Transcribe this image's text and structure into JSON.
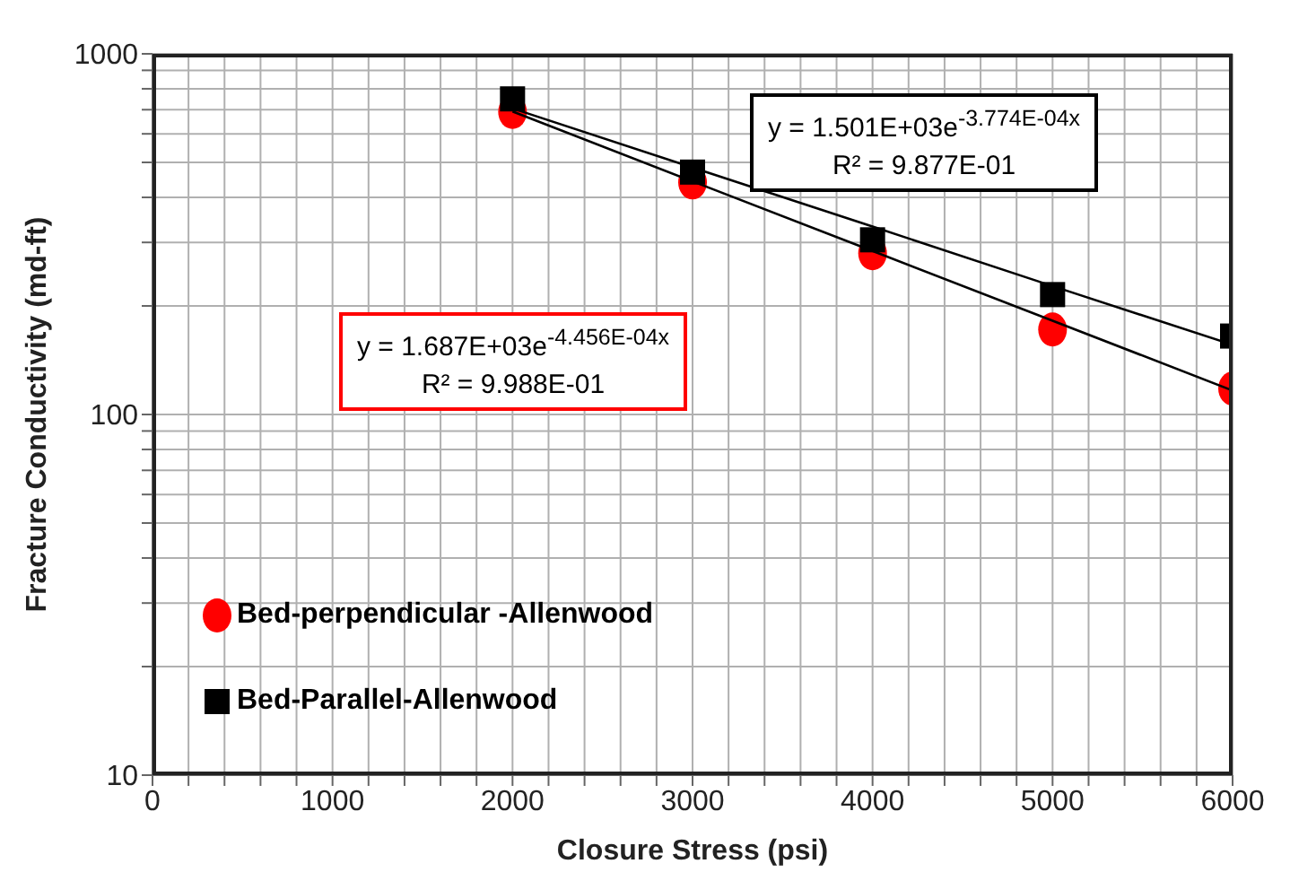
{
  "chart_data": {
    "type": "scatter",
    "xlabel": "Closure Stress (psi)",
    "ylabel": "Fracture Conductivity (md-ft)",
    "log": "y",
    "grid": true,
    "legend": "bottom left",
    "xlim": [
      0,
      6000
    ],
    "ylim": [
      10,
      1000
    ],
    "xticks": [
      0,
      {
        "value": 200,
        "label": null
      },
      {
        "value": 400,
        "label": null
      },
      {
        "value": 600,
        "label": null
      },
      {
        "value": 800,
        "label": null
      },
      1000,
      {
        "value": 1200,
        "label": null
      },
      {
        "value": 1400,
        "label": null
      },
      {
        "value": 1600,
        "label": null
      },
      {
        "value": 1800,
        "label": null
      },
      2000,
      {
        "value": 2200,
        "label": null
      },
      {
        "value": 2400,
        "label": null
      },
      {
        "value": 2600,
        "label": null
      },
      {
        "value": 2800,
        "label": null
      },
      3000,
      {
        "value": 3200,
        "label": null
      },
      {
        "value": 3400,
        "label": null
      },
      {
        "value": 3600,
        "label": null
      },
      {
        "value": 3800,
        "label": null
      },
      4000,
      {
        "value": 4200,
        "label": null
      },
      {
        "value": 4400,
        "label": null
      },
      {
        "value": 4600,
        "label": null
      },
      {
        "value": 4800,
        "label": null
      },
      5000,
      {
        "value": 5200,
        "label": null
      },
      {
        "value": 5400,
        "label": null
      },
      {
        "value": 5600,
        "label": null
      },
      {
        "value": 5800,
        "label": null
      },
      6000
    ],
    "yticks": [
      10,
      {
        "value": 20,
        "label": null
      },
      {
        "value": 30,
        "label": null
      },
      {
        "value": 40,
        "label": null
      },
      {
        "value": 50,
        "label": null
      },
      {
        "value": 60,
        "label": null
      },
      {
        "value": 70,
        "label": null
      },
      {
        "value": 80,
        "label": null
      },
      {
        "value": 90,
        "label": null
      },
      100,
      {
        "value": 200,
        "label": null
      },
      {
        "value": 300,
        "label": null
      },
      {
        "value": 400,
        "label": null
      },
      {
        "value": 500,
        "label": null
      },
      {
        "value": 600,
        "label": null
      },
      {
        "value": 700,
        "label": null
      },
      {
        "value": 800,
        "label": null
      },
      {
        "value": 900,
        "label": null
      },
      1000
    ],
    "x": [
      2000,
      3000,
      4000,
      5000,
      6000
    ],
    "series": [
      {
        "name": "Bed-perpendicular -Allenwood",
        "color": "#ff0000",
        "marker": "circle",
        "values": [
          690,
          440,
          280,
          172,
          118
        ]
      },
      {
        "name": "Bed-Parallel-Allenwood",
        "color": "#000000",
        "marker": "square",
        "values": [
          750,
          470,
          305,
          215,
          165
        ]
      },
      {
        "type": "line",
        "color": "#000000",
        "marker": "none",
        "values": [
          692,
          443,
          284,
          182,
          116.5
        ]
      },
      {
        "type": "line",
        "color": "#000000",
        "marker": "none",
        "values": [
          705.6,
          484,
          332,
          227,
          156
        ]
      }
    ],
    "annotations": [
      "y = 1.687E+03e$^{-4.456E-04x}$",
      "R² = 9.988E-01",
      "y = 1.501E+03e$^{-3.774E-04x}$",
      "R² = 9.877E-01"
    ]
  }
}
